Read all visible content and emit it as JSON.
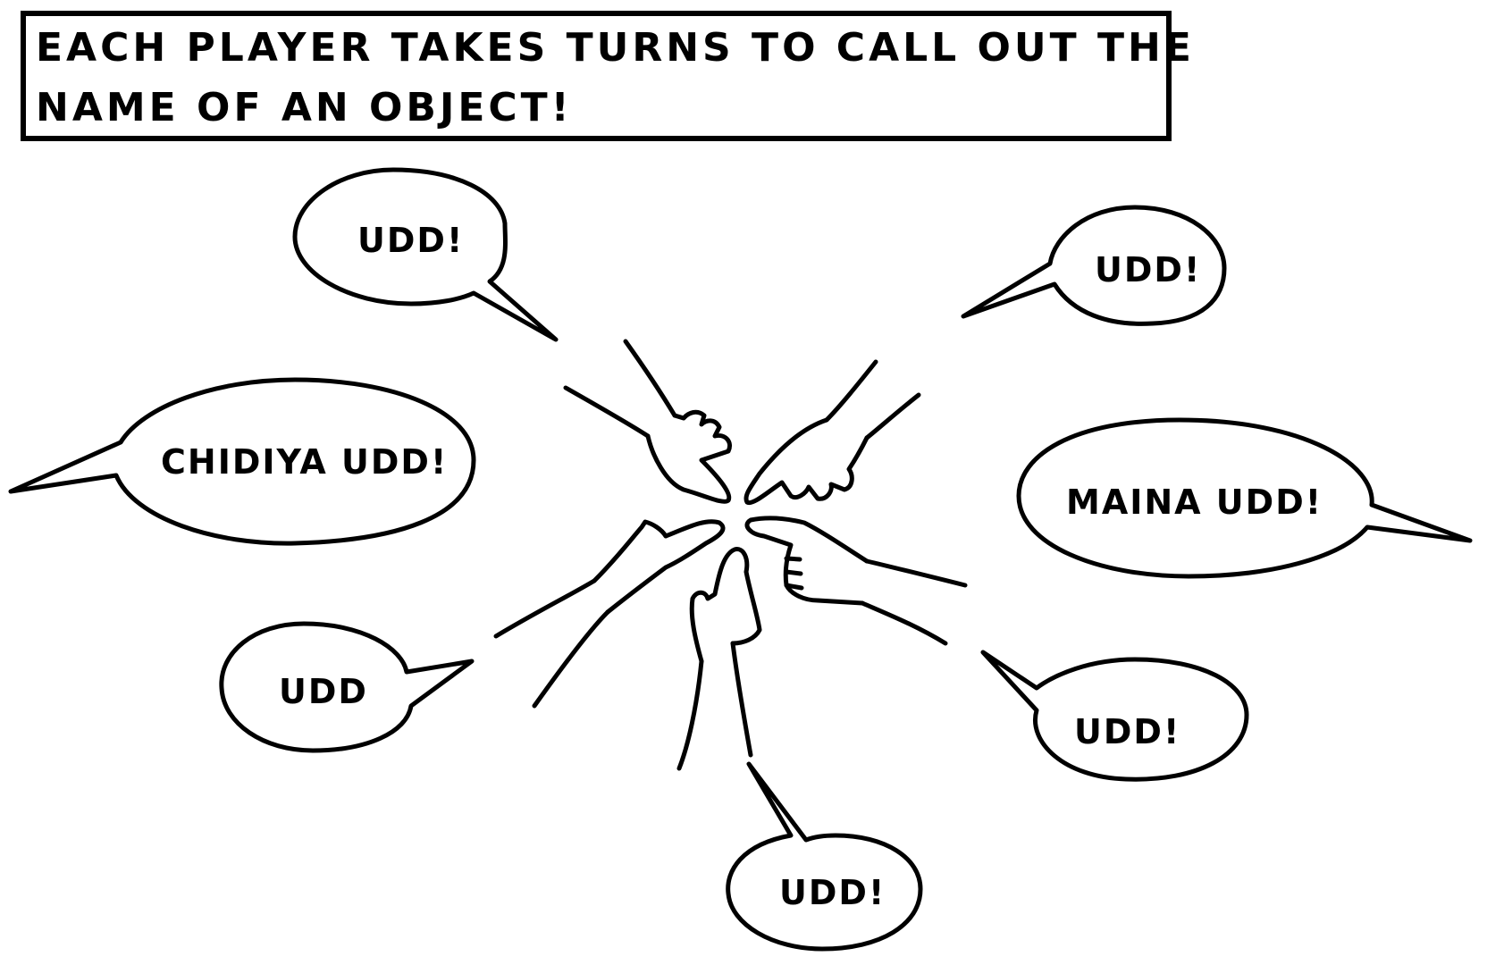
{
  "caption": {
    "line1": "EACH PLAYER TAKES TURNS TO CALL OUT THE",
    "line2": "NAME OF AN OBJECT!"
  },
  "bubbles": {
    "top_left": "UDD!",
    "top_right": "UDD!",
    "left": "CHIDIYA UDD!",
    "right": "MAINA UDD!",
    "bottom_left": "UDD",
    "bottom_right": "UDD!",
    "bottom": "UDD!"
  },
  "colors": {
    "ink": "#000000",
    "paper": "#ffffff"
  }
}
